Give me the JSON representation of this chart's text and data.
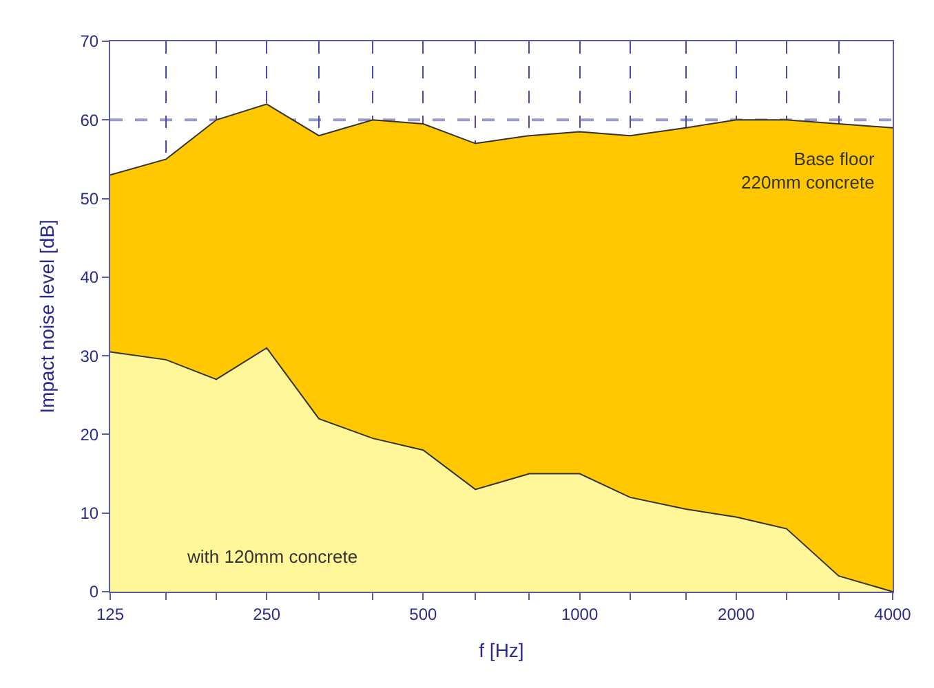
{
  "chart_data": {
    "type": "area",
    "xlabel": "f [Hz]",
    "ylabel": "Impact noise level [dB]",
    "x": [
      125,
      160,
      200,
      250,
      315,
      400,
      500,
      630,
      800,
      1000,
      1250,
      1600,
      2000,
      2500,
      3150,
      4000
    ],
    "series": [
      {
        "color": "#ffc800",
        "values": [
          53,
          55,
          60,
          62,
          58,
          60,
          59.5,
          57,
          58,
          58.5,
          58,
          59,
          60,
          60,
          59.5,
          59
        ]
      },
      {
        "color": "#fff799",
        "values": [
          30.5,
          29.5,
          27,
          31,
          22,
          19.5,
          18,
          13,
          15,
          15,
          12,
          10.5,
          9.5,
          8,
          2,
          0
        ]
      }
    ],
    "xlim": [
      125,
      4000
    ],
    "ylim": [
      0,
      70
    ],
    "log": "x",
    "xticks": [
      125,
      {
        "value": 160,
        "label": null
      },
      {
        "value": 200,
        "label": null
      },
      250,
      {
        "value": 315,
        "label": null
      },
      {
        "value": 400,
        "label": null
      },
      500,
      {
        "value": 630,
        "label": null
      },
      {
        "value": 800,
        "label": null
      },
      1000,
      {
        "value": 1250,
        "label": null
      },
      {
        "value": 1600,
        "label": null
      },
      2000,
      {
        "value": 2500,
        "label": null
      },
      {
        "value": 3150,
        "label": null
      },
      4000
    ],
    "yticks": [
      0,
      10,
      20,
      30,
      40,
      50,
      60,
      70
    ],
    "grid": "x",
    "ref_lines": [
      {
        "axis": "y",
        "value": 60,
        "label": null,
        "color": "#9a9ac8",
        "line_style": "dashed"
      }
    ],
    "annotations": [
      "Base floor\n220mm concrete",
      "with 120mm concrete"
    ]
  }
}
